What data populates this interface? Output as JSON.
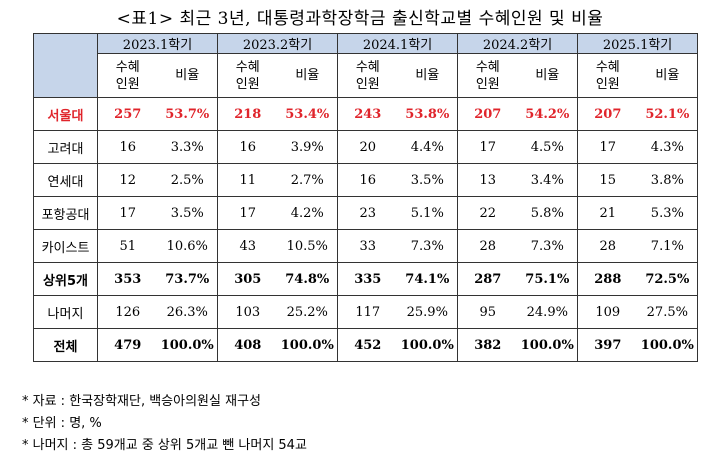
{
  "title": "<표1> 최근 3년, 대통령과학장학금 출신학교별 수혜인원 및 비율",
  "periods": [
    "2023.1학기",
    "2023.2학기",
    "2024.1학기",
    "2024.2학기",
    "2025.1학기"
  ],
  "sub_headers": {
    "count": "수혜\n인원",
    "ratio": "비율"
  },
  "rows": [
    {
      "label": "서울대",
      "style": "highlight",
      "cells": [
        "257",
        "53.7%",
        "218",
        "53.4%",
        "243",
        "53.8%",
        "207",
        "54.2%",
        "207",
        "52.1%"
      ]
    },
    {
      "label": "고려대",
      "style": "normal",
      "cells": [
        "16",
        "3.3%",
        "16",
        "3.9%",
        "20",
        "4.4%",
        "17",
        "4.5%",
        "17",
        "4.3%"
      ]
    },
    {
      "label": "연세대",
      "style": "normal",
      "cells": [
        "12",
        "2.5%",
        "11",
        "2.7%",
        "16",
        "3.5%",
        "13",
        "3.4%",
        "15",
        "3.8%"
      ]
    },
    {
      "label": "포항공대",
      "style": "normal",
      "cells": [
        "17",
        "3.5%",
        "17",
        "4.2%",
        "23",
        "5.1%",
        "22",
        "5.8%",
        "21",
        "5.3%"
      ]
    },
    {
      "label": "카이스트",
      "style": "normal",
      "cells": [
        "51",
        "10.6%",
        "43",
        "10.5%",
        "33",
        "7.3%",
        "28",
        "7.3%",
        "28",
        "7.1%"
      ]
    },
    {
      "label": "상위5개",
      "style": "bold",
      "cells": [
        "353",
        "73.7%",
        "305",
        "74.8%",
        "335",
        "74.1%",
        "287",
        "75.1%",
        "288",
        "72.5%"
      ]
    },
    {
      "label": "나머지",
      "style": "normal",
      "cells": [
        "126",
        "26.3%",
        "103",
        "25.2%",
        "117",
        "25.9%",
        "95",
        "24.9%",
        "109",
        "27.5%"
      ]
    },
    {
      "label": "전체",
      "style": "bold",
      "cells": [
        "479",
        "100.0%",
        "408",
        "100.0%",
        "452",
        "100.0%",
        "382",
        "100.0%",
        "397",
        "100.0%"
      ]
    }
  ],
  "notes": [
    "* 자료 : 한국장학재단, 백승아의원실 재구성",
    "* 단위 : 명, %",
    "* 나머지 : 총 59개교 중 상위 5개교 뺀 나머지 54교"
  ]
}
